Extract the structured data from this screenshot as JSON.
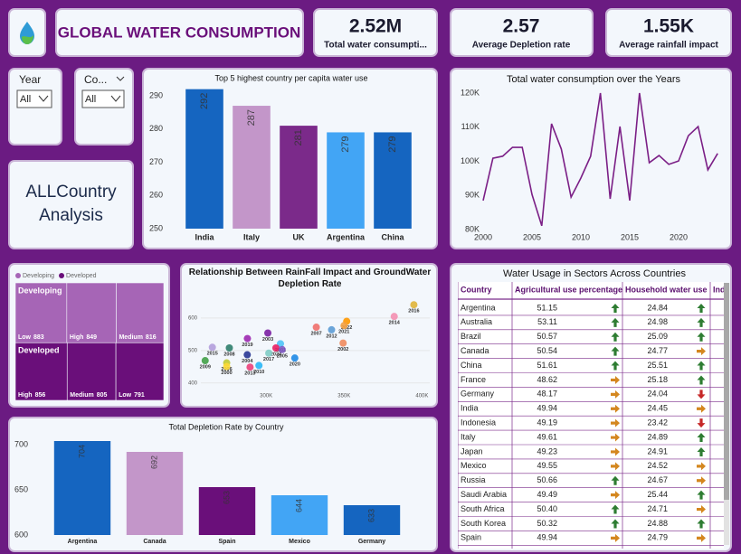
{
  "header": {
    "title": "GLOBAL WATER CONSUMPTION"
  },
  "kpis": [
    {
      "value": "2.52M",
      "label": "Total water consumpti..."
    },
    {
      "value": "2.57",
      "label": "Average Depletion rate"
    },
    {
      "value": "1.55K",
      "label": "Average rainfall impact"
    }
  ],
  "slicers": [
    {
      "title": "Year",
      "value": "All"
    },
    {
      "title": "Co...",
      "value": "All"
    }
  ],
  "analysis": {
    "text": "ALLCountry Analysis"
  },
  "chart_data": [
    {
      "type": "bar",
      "title": "Top 5 highest country per capita water use",
      "categories": [
        "India",
        "Italy",
        "UK",
        "Argentina",
        "China"
      ],
      "values": [
        292,
        287,
        281,
        279,
        279
      ],
      "colors": [
        "#1565c0",
        "#c396c9",
        "#7b2a8a",
        "#42a5f5",
        "#1565c0"
      ],
      "ylim": [
        250,
        293
      ],
      "yticks": [
        250,
        260,
        270,
        280,
        290
      ]
    },
    {
      "type": "line",
      "title": "Total water consumption over the Years",
      "x": [
        2000,
        2001,
        2002,
        2003,
        2004,
        2005,
        2006,
        2007,
        2008,
        2009,
        2010,
        2011,
        2012,
        2013,
        2014,
        2015,
        2016,
        2017,
        2018,
        2019,
        2020,
        2021,
        2022,
        2023,
        2024
      ],
      "series": [
        {
          "color": "#7b1f86",
          "values": [
            88500,
            100900,
            101500,
            104100,
            104100,
            90300,
            81100,
            111000,
            103600,
            89500,
            95100,
            101500,
            120000,
            89000,
            110200,
            88500,
            120000,
            99600,
            101700,
            99100,
            100100,
            107500,
            110200,
            97500,
            102300
          ]
        }
      ],
      "xlim": [
        2000,
        2024
      ],
      "xticks": [
        2000,
        2005,
        2010,
        2015,
        2020
      ],
      "ylim": [
        80000,
        120000
      ],
      "yticks": [
        {
          "value": 80000,
          "label": "80K"
        },
        {
          "value": 90000,
          "label": "90K"
        },
        {
          "value": 100000,
          "label": "100K"
        },
        {
          "value": 110000,
          "label": "110K"
        },
        {
          "value": 120000,
          "label": "120K"
        }
      ]
    },
    {
      "type": "treemap",
      "groups": [
        {
          "name": "Developing",
          "color": "#a665b6",
          "items": [
            {
              "label": "Low",
              "value": 883
            },
            {
              "label": "High",
              "value": 849
            },
            {
              "label": "Medium",
              "value": 816
            }
          ]
        },
        {
          "name": "Developed",
          "color": "#6a0f7a",
          "items": [
            {
              "label": "High",
              "value": 856
            },
            {
              "label": "Medium",
              "value": 805
            },
            {
              "label": "Low",
              "value": 791
            }
          ]
        }
      ]
    },
    {
      "type": "scatter",
      "title": "Relationship Between RainFall Impact and GroundWater Depletion Rate",
      "labels": [
        "2016",
        "2014",
        "2022",
        "2007",
        "2012",
        "2021",
        "2002",
        "2015",
        "2008",
        "2019",
        "2003",
        "2001",
        "2024",
        "2005",
        "2017",
        "2020",
        "2009",
        "2004",
        "2006",
        "2000",
        "2013",
        "2010"
      ],
      "x": [
        394800,
        382200,
        351700,
        332200,
        342000,
        350000,
        349400,
        265500,
        276400,
        288000,
        301100,
        309200,
        306300,
        310300,
        301700,
        318400,
        260900,
        287900,
        274700,
        274700,
        289700,
        295400
      ],
      "y": [
        641,
        605,
        590,
        572,
        564,
        577,
        523,
        510,
        508,
        537,
        554,
        521,
        508,
        503,
        492,
        477,
        469,
        487,
        462,
        451,
        449,
        454
      ],
      "colors": [
        "#e0b43a",
        "#f48fb1",
        "#ff9800",
        "#ef6f6c",
        "#5c9bd5",
        "#f4a142",
        "#f08a5d",
        "#b39ddb",
        "#2e7d6b",
        "#9c27b0",
        "#7b1fa2",
        "#4fc3f7",
        "#e91e63",
        "#7e57c2",
        "#80cbc4",
        "#1e88e5",
        "#43a047",
        "#283593",
        "#c0ca33",
        "#fdd835",
        "#ec407a",
        "#29b6f6"
      ],
      "xlim": [
        250000,
        405000
      ],
      "xticks": [
        {
          "value": 300000,
          "label": "300K"
        },
        {
          "value": 350000,
          "label": "350K"
        },
        {
          "value": 400000,
          "label": "400K"
        }
      ],
      "ylim": [
        380,
        650
      ],
      "yticks": [
        400,
        500,
        600
      ],
      "grid": true
    },
    {
      "type": "bar",
      "title": "Total Depletion Rate by Country",
      "categories": [
        "Argentina",
        "Canada",
        "Spain",
        "Mexico",
        "Germany"
      ],
      "values": [
        704,
        692,
        653,
        644,
        633
      ],
      "colors": [
        "#1565c0",
        "#c396c9",
        "#6a0f7a",
        "#42a5f5",
        "#1565c0"
      ],
      "ylim": [
        600,
        712
      ],
      "yticks": [
        600,
        650,
        700
      ]
    }
  ],
  "table": {
    "title": "Water Usage in Sectors Across Countries",
    "columns": [
      "Country",
      "Agricultural use percentage",
      "Household water use",
      "Ind"
    ],
    "rows": [
      {
        "country": "Argentina",
        "agri": "51.15",
        "agri_trend": "up",
        "household": "24.84",
        "household_trend": "up"
      },
      {
        "country": "Australia",
        "agri": "53.11",
        "agri_trend": "up",
        "household": "24.98",
        "household_trend": "up"
      },
      {
        "country": "Brazil",
        "agri": "50.57",
        "agri_trend": "up",
        "household": "25.09",
        "household_trend": "up"
      },
      {
        "country": "Canada",
        "agri": "50.54",
        "agri_trend": "up",
        "household": "24.77",
        "household_trend": "right"
      },
      {
        "country": "China",
        "agri": "51.61",
        "agri_trend": "up",
        "household": "25.51",
        "household_trend": "up"
      },
      {
        "country": "France",
        "agri": "48.62",
        "agri_trend": "right",
        "household": "25.18",
        "household_trend": "up"
      },
      {
        "country": "Germany",
        "agri": "48.17",
        "agri_trend": "right",
        "household": "24.04",
        "household_trend": "down"
      },
      {
        "country": "India",
        "agri": "49.94",
        "agri_trend": "right",
        "household": "24.45",
        "household_trend": "right"
      },
      {
        "country": "Indonesia",
        "agri": "49.19",
        "agri_trend": "right",
        "household": "23.42",
        "household_trend": "down"
      },
      {
        "country": "Italy",
        "agri": "49.61",
        "agri_trend": "right",
        "household": "24.89",
        "household_trend": "up"
      },
      {
        "country": "Japan",
        "agri": "49.23",
        "agri_trend": "right",
        "household": "24.91",
        "household_trend": "up"
      },
      {
        "country": "Mexico",
        "agri": "49.55",
        "agri_trend": "right",
        "household": "24.52",
        "household_trend": "right"
      },
      {
        "country": "Russia",
        "agri": "50.66",
        "agri_trend": "up",
        "household": "24.67",
        "household_trend": "right"
      },
      {
        "country": "Saudi Arabia",
        "agri": "49.49",
        "agri_trend": "right",
        "household": "25.44",
        "household_trend": "up"
      },
      {
        "country": "South Africa",
        "agri": "50.40",
        "agri_trend": "up",
        "household": "24.71",
        "household_trend": "right"
      },
      {
        "country": "South Korea",
        "agri": "50.32",
        "agri_trend": "up",
        "household": "24.88",
        "household_trend": "up"
      },
      {
        "country": "Spain",
        "agri": "49.94",
        "agri_trend": "right",
        "household": "24.79",
        "household_trend": "right"
      }
    ]
  }
}
